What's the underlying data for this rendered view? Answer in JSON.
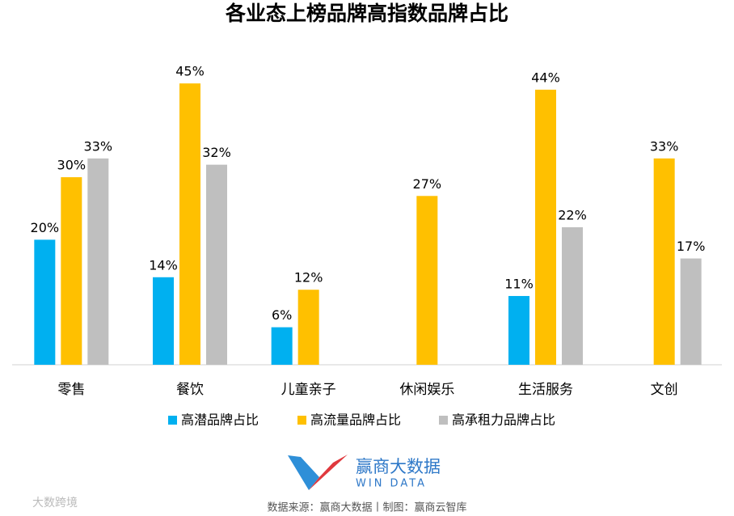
{
  "chart_data": {
    "type": "bar",
    "title": "各业态上榜品牌高指数品牌占比",
    "categories": [
      "零售",
      "餐饮",
      "儿童亲子",
      "休闲娱乐",
      "生活服务",
      "文创"
    ],
    "series": [
      {
        "name": "高潜品牌占比",
        "color": "#00b0f0",
        "values": [
          20,
          14,
          6,
          null,
          11,
          null
        ],
        "value_labels": [
          "20%",
          "14%",
          "6%",
          null,
          "11%",
          null
        ]
      },
      {
        "name": "高流量品牌占比",
        "color": "#ffc000",
        "values": [
          30,
          45,
          12,
          27,
          44,
          33
        ],
        "value_labels": [
          "30%",
          "45%",
          "12%",
          "27%",
          "44%",
          "33%"
        ]
      },
      {
        "name": "高承租力品牌占比",
        "color": "#bfbfbf",
        "values": [
          33,
          32,
          null,
          null,
          22,
          17
        ],
        "value_labels": [
          "33%",
          "32%",
          null,
          null,
          "22%",
          "17%"
        ]
      }
    ],
    "legend": "bottom"
  },
  "footer": {
    "logo_name": "赢商大数据",
    "logo_sub": "WIN DATA",
    "source": "数据来源：赢商大数据丨制图：赢商云智库",
    "watermark": "大数跨境"
  }
}
